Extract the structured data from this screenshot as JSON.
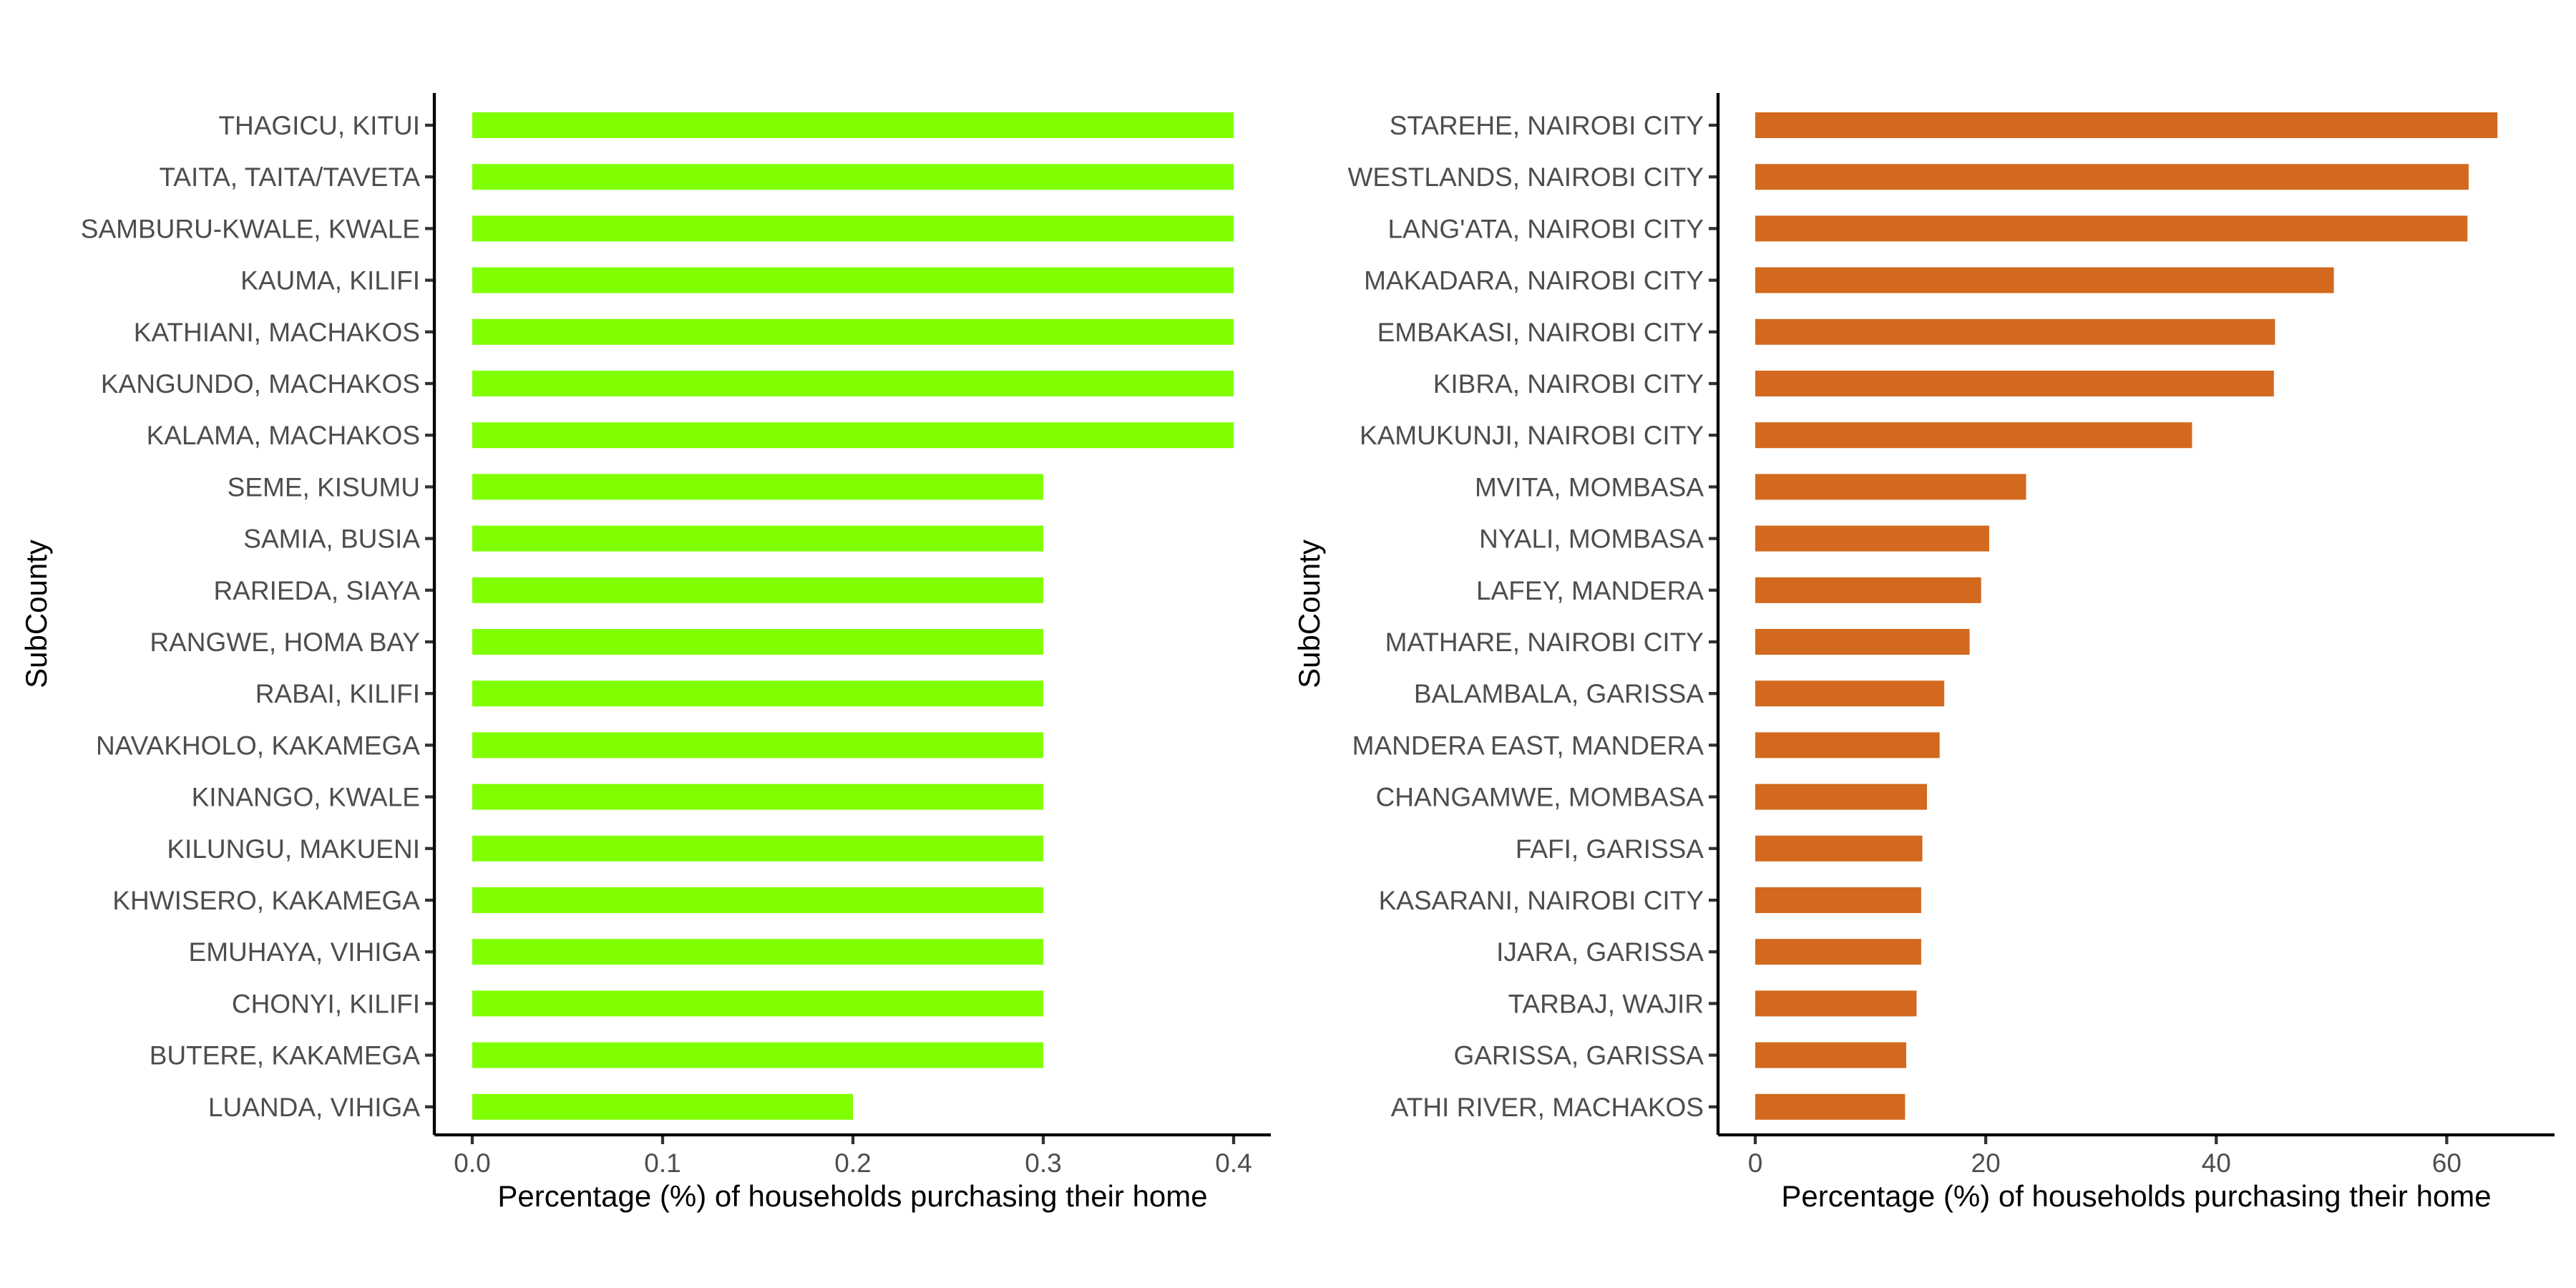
{
  "chart_data": [
    {
      "type": "bar",
      "orientation": "horizontal",
      "xlabel": "Percentage (%) of households purchasing their home",
      "ylabel": "SubCounty",
      "xlim": [
        0,
        0.4
      ],
      "xticks": [
        0.0,
        0.1,
        0.2,
        0.3,
        0.4
      ],
      "xtick_labels": [
        "0.0",
        "0.1",
        "0.2",
        "0.3",
        "0.4"
      ],
      "grid": false,
      "bar_color": "#7FFF00",
      "categories": [
        "THAGICU, KITUI",
        "TAITA, TAITA/TAVETA",
        "SAMBURU-KWALE, KWALE",
        "KAUMA, KILIFI",
        "KATHIANI, MACHAKOS",
        "KANGUNDO, MACHAKOS",
        "KALAMA, MACHAKOS",
        "SEME, KISUMU",
        "SAMIA, BUSIA",
        "RARIEDA, SIAYA",
        "RANGWE, HOMA BAY",
        "RABAI, KILIFI",
        "NAVAKHOLO, KAKAMEGA",
        "KINANGO, KWALE",
        "KILUNGU, MAKUENI",
        "KHWISERO, KAKAMEGA",
        "EMUHAYA, VIHIGA",
        "CHONYI, KILIFI",
        "BUTERE, KAKAMEGA",
        "LUANDA, VIHIGA"
      ],
      "values": [
        0.4,
        0.4,
        0.4,
        0.4,
        0.4,
        0.4,
        0.4,
        0.3,
        0.3,
        0.3,
        0.3,
        0.3,
        0.3,
        0.3,
        0.3,
        0.3,
        0.3,
        0.3,
        0.3,
        0.2
      ]
    },
    {
      "type": "bar",
      "orientation": "horizontal",
      "xlabel": "Percentage (%) of households purchasing their home",
      "ylabel": "SubCounty",
      "xlim": [
        0,
        66
      ],
      "xticks": [
        0,
        20,
        40,
        60
      ],
      "xtick_labels": [
        "0",
        "20",
        "40",
        "60"
      ],
      "grid": false,
      "bar_color": "#D2691E",
      "categories": [
        "STAREHE, NAIROBI CITY",
        "WESTLANDS, NAIROBI CITY",
        "LANG'ATA, NAIROBI CITY",
        "MAKADARA, NAIROBI CITY",
        "EMBAKASI, NAIROBI CITY",
        "KIBRA, NAIROBI CITY",
        "KAMUKUNJI, NAIROBI CITY",
        "MVITA, MOMBASA",
        "NYALI, MOMBASA",
        "LAFEY, MANDERA",
        "MATHARE, NAIROBI CITY",
        "BALAMBALA, GARISSA",
        "MANDERA EAST, MANDERA",
        "CHANGAMWE, MOMBASA",
        "FAFI, GARISSA",
        "KASARANI, NAIROBI CITY",
        "IJARA, GARISSA",
        "TARBAJ, WAJIR",
        "GARISSA, GARISSA",
        "ATHI RIVER, MACHAKOS"
      ],
      "values": [
        64.4,
        61.9,
        61.8,
        50.2,
        45.1,
        45.0,
        37.9,
        23.5,
        20.3,
        19.6,
        18.6,
        16.4,
        16.0,
        14.9,
        14.5,
        14.4,
        14.4,
        14.0,
        13.1,
        13.0
      ]
    }
  ]
}
